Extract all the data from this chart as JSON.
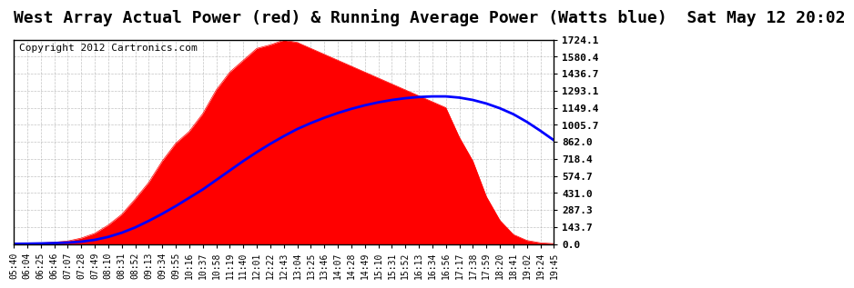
{
  "title": "West Array Actual Power (red) & Running Average Power (Watts blue)  Sat May 12 20:02",
  "copyright": "Copyright 2012 Cartronics.com",
  "ylabel": "",
  "xlabel": "",
  "ymin": 0.0,
  "ymax": 1724.1,
  "yticks": [
    0.0,
    143.7,
    287.3,
    431.0,
    574.7,
    718.4,
    862.0,
    1005.7,
    1149.4,
    1293.1,
    1436.7,
    1580.4,
    1724.1
  ],
  "bg_color": "#ffffff",
  "grid_color": "#aaaaaa",
  "actual_color": "red",
  "avg_color": "blue",
  "title_fontsize": 13,
  "copyright_fontsize": 8,
  "x_labels": [
    "05:40",
    "06:04",
    "06:25",
    "06:46",
    "07:07",
    "07:28",
    "07:49",
    "08:10",
    "08:31",
    "08:52",
    "09:13",
    "09:34",
    "09:55",
    "10:16",
    "10:37",
    "10:58",
    "11:19",
    "11:40",
    "12:01",
    "12:22",
    "12:43",
    "13:04",
    "13:25",
    "13:46",
    "14:07",
    "14:28",
    "14:49",
    "15:10",
    "15:31",
    "15:52",
    "16:13",
    "16:34",
    "16:56",
    "17:17",
    "17:38",
    "17:59",
    "18:20",
    "18:41",
    "19:02",
    "19:24",
    "19:45"
  ],
  "actual_power": [
    2,
    5,
    8,
    15,
    25,
    50,
    90,
    160,
    250,
    380,
    520,
    700,
    850,
    950,
    1100,
    1300,
    1450,
    1550,
    1650,
    1680,
    1720,
    1700,
    1650,
    1600,
    1550,
    1500,
    1450,
    1400,
    1350,
    1300,
    1250,
    1200,
    1150,
    900,
    700,
    400,
    200,
    80,
    30,
    10,
    3
  ],
  "running_avg": [
    2,
    3,
    5,
    8,
    12,
    20,
    35,
    60,
    95,
    140,
    195,
    255,
    320,
    390,
    460,
    540,
    620,
    700,
    775,
    845,
    910,
    970,
    1020,
    1065,
    1105,
    1140,
    1170,
    1195,
    1215,
    1230,
    1240,
    1245,
    1245,
    1235,
    1215,
    1185,
    1145,
    1095,
    1030,
    955,
    875
  ]
}
